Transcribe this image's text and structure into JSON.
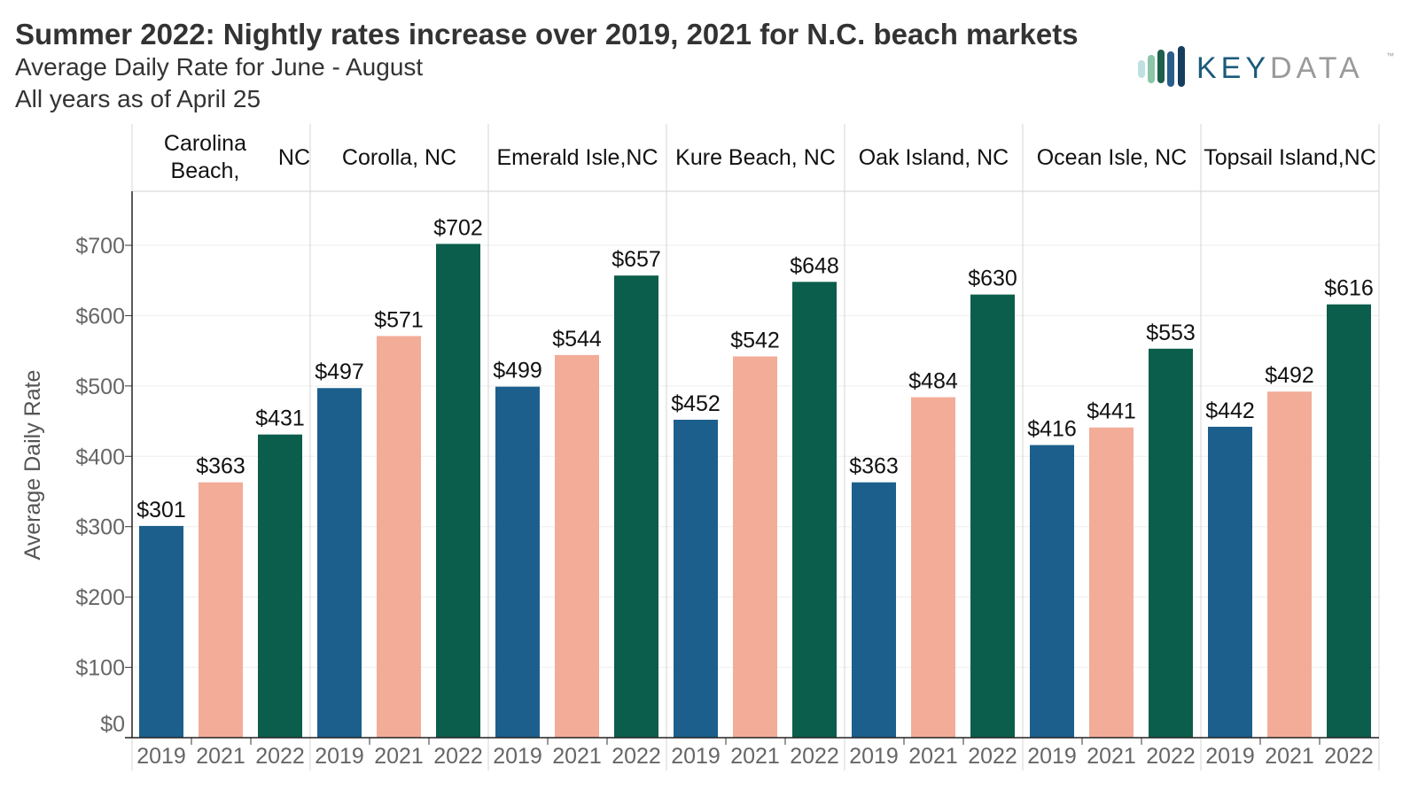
{
  "title": "Summer 2022: Nightly rates increase over 2019, 2021 for N.C. beach markets",
  "subtitle": "Average Daily Rate for June - August",
  "subtitle2": "All years as of April 25",
  "logo": {
    "text_left": "KEY",
    "text_right": "DATA",
    "tm": "™"
  },
  "chart_data": {
    "type": "bar",
    "ylabel": "Average Daily Rate",
    "ylim": [
      0,
      770
    ],
    "yticks": [
      0,
      100,
      200,
      300,
      400,
      500,
      600,
      700
    ],
    "ytick_labels": [
      "$0",
      "$100",
      "$200",
      "$300",
      "$400",
      "$500",
      "$600",
      "$700"
    ],
    "grid": true,
    "colors": {
      "2019": "#1c5f8c",
      "2021": "#f2ac98",
      "2022": "#0b5e4b"
    },
    "years": [
      "2019",
      "2021",
      "2022"
    ],
    "markets": [
      {
        "name": "Carolina Beach, NC",
        "lines": [
          "Carolina Beach,",
          "NC"
        ],
        "values": [
          301,
          363,
          431
        ]
      },
      {
        "name": "Corolla, NC",
        "lines": [
          "Corolla, NC"
        ],
        "values": [
          497,
          571,
          702
        ]
      },
      {
        "name": "Emerald Isle, NC",
        "lines": [
          "Emerald Isle,",
          "NC"
        ],
        "values": [
          499,
          544,
          657
        ]
      },
      {
        "name": "Kure Beach, NC",
        "lines": [
          "Kure Beach, NC"
        ],
        "values": [
          452,
          542,
          648
        ]
      },
      {
        "name": "Oak Island, NC",
        "lines": [
          "Oak Island, NC"
        ],
        "values": [
          363,
          484,
          630
        ]
      },
      {
        "name": "Ocean Isle, NC",
        "lines": [
          "Ocean Isle, NC"
        ],
        "values": [
          416,
          441,
          553
        ]
      },
      {
        "name": "Topsail Island, NC",
        "lines": [
          "Topsail Island,",
          "NC"
        ],
        "values": [
          442,
          492,
          616
        ]
      }
    ]
  }
}
